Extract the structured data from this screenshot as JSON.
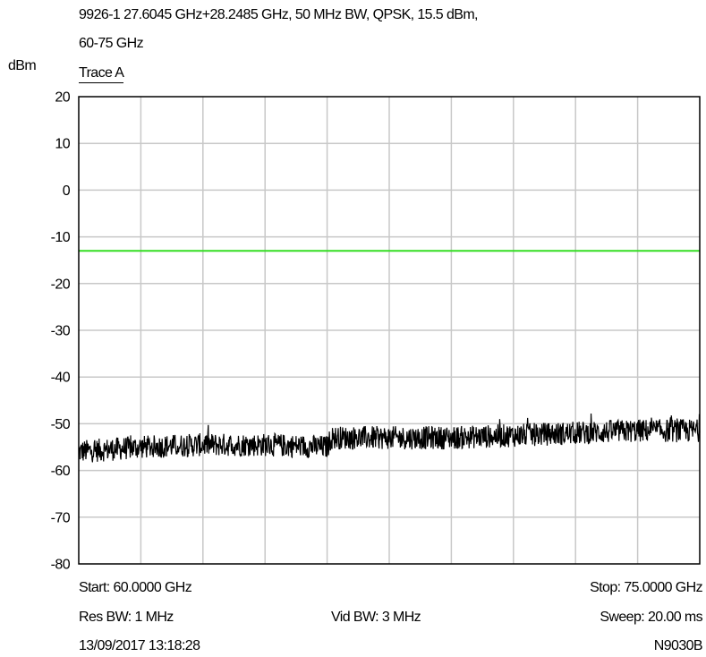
{
  "header": {
    "title_line1": "9926-1 27.6045 GHz+28.2485 GHz, 50 MHz BW, QPSK, 15.5 dBm,",
    "title_line2": "60-75 GHz",
    "y_unit": "dBm",
    "trace_label": "Trace A"
  },
  "footer": {
    "start": "Start: 60.0000 GHz",
    "stop": "Stop: 75.0000 GHz",
    "res_bw": "Res BW: 1 MHz",
    "vid_bw": "Vid BW: 3 MHz",
    "sweep": "Sweep: 20.00 ms",
    "timestamp": "13/09/2017 13:18:28",
    "instrument": "N9030B"
  },
  "colors": {
    "limit_line": "#33dd22",
    "trace": "#000000",
    "grid": "#c8c8c8"
  },
  "chart_data": {
    "type": "line",
    "title": "9926-1 27.6045 GHz+28.2485 GHz, 50 MHz BW, QPSK, 15.5 dBm, 60-75 GHz",
    "xlabel": "",
    "ylabel": "dBm",
    "xlim": [
      60,
      75
    ],
    "ylim": [
      -80,
      20
    ],
    "x_divisions": 10,
    "yticks": [
      20,
      10,
      0,
      -10,
      -20,
      -30,
      -40,
      -50,
      -60,
      -70,
      -80
    ],
    "grid": true,
    "series": [
      {
        "name": "Trace A",
        "color": "#000000",
        "x": [
          60,
          61.5,
          63,
          64.5,
          66,
          66.1,
          67.5,
          69,
          70.5,
          72,
          73.5,
          75
        ],
        "y": [
          -56,
          -55,
          -54.5,
          -54.5,
          -55,
          -53,
          -53,
          -53,
          -52.5,
          -52,
          -51.5,
          -51.5
        ],
        "noise_band": 2.5
      },
      {
        "name": "limit",
        "color": "#33dd22",
        "x": [
          60,
          75
        ],
        "y": [
          -13,
          -13
        ]
      }
    ]
  }
}
